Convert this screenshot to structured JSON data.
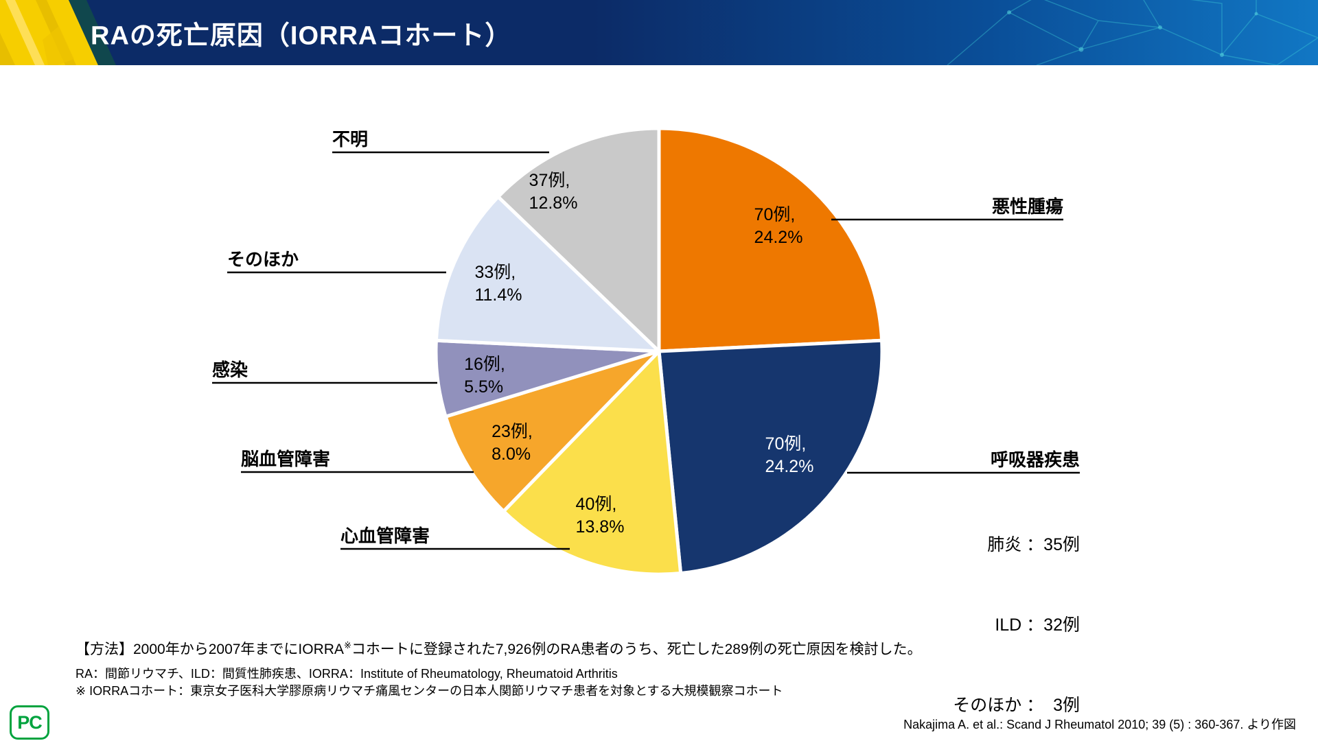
{
  "header": {
    "title": "RAの死亡原因（IORRAコホート）"
  },
  "chart_data": {
    "type": "pie",
    "title": "RAの死亡原因（IORRAコホート）",
    "total": 289,
    "start_angle": "top",
    "direction": "clockwise",
    "segments": [
      {
        "label": "悪性腫瘍",
        "count": 70,
        "percent": 24.2,
        "count_label": "70例,",
        "percent_label": "24.2%",
        "color": "#EE7800",
        "text_color": "#000000"
      },
      {
        "label": "呼吸器疾患",
        "count": 70,
        "percent": 24.2,
        "count_label": "70例,",
        "percent_label": "24.2%",
        "color": "#16366E",
        "text_color": "#FFFFFF"
      },
      {
        "label": "心血管障害",
        "count": 40,
        "percent": 13.8,
        "count_label": "40例,",
        "percent_label": "13.8%",
        "color": "#FBDF4B",
        "text_color": "#000000"
      },
      {
        "label": "脳血管障害",
        "count": 23,
        "percent": 8.0,
        "count_label": "23例,",
        "percent_label": "8.0%",
        "color": "#F6A62B",
        "text_color": "#000000"
      },
      {
        "label": "感染",
        "count": 16,
        "percent": 5.5,
        "count_label": "16例,",
        "percent_label": "5.5%",
        "color": "#9191BC",
        "text_color": "#000000"
      },
      {
        "label": "そのほか",
        "count": 33,
        "percent": 11.4,
        "count_label": "33例,",
        "percent_label": "11.4%",
        "color": "#DAE3F3",
        "text_color": "#000000"
      },
      {
        "label": "不明",
        "count": 37,
        "percent": 12.8,
        "count_label": "37例,",
        "percent_label": "12.8%",
        "color": "#C9C9C9",
        "text_color": "#000000"
      }
    ],
    "respiratory_breakdown": [
      {
        "text": "肺炎 ：35例"
      },
      {
        "text": "ILD ：32例"
      },
      {
        "text": "そのほか ：  3例"
      }
    ]
  },
  "footer": {
    "method_prefix": "【方法】2000年から2007年までにIORRA",
    "method_sup": "※",
    "method_suffix": "コホートに登録された7,926例のRA患者のうち、死亡した289例の死亡原因を検討した。",
    "abbreviation": "RA：間節リウマチ、ILD：間質性肺疾患、IORRA：Institute of Rheumatology, Rheumatoid Arthritis",
    "cohort_note": "※ IORRAコホート：東京女子医科大学膠原病リウマチ痛風センターの日本人関節リウマチ患者を対象とする大規模観察コホート",
    "citation": "Nakajima A. et al.: Scand J Rheumatol 2010; 39 (5) : 360-367. より作図"
  },
  "logo": {
    "text": "PC",
    "color": "#00A33E"
  }
}
